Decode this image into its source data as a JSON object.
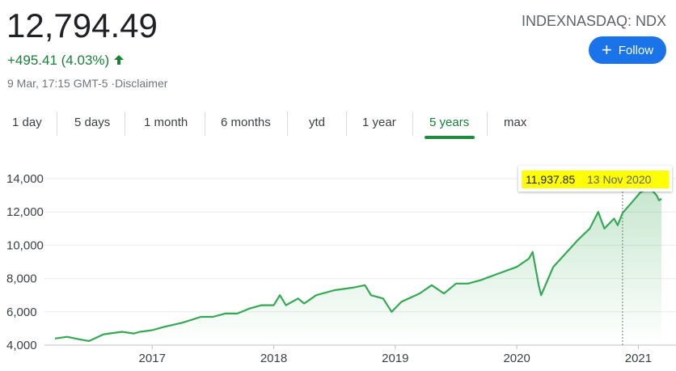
{
  "header": {
    "price": "12,794.49",
    "change": "+495.41 (4.03%)",
    "timestamp": "9 Mar, 17:15 GMT-5 ·",
    "disclaimer": "Disclaimer",
    "ticker": "INDEXNASDAQ: NDX",
    "follow": "Follow"
  },
  "tabs": {
    "items": [
      "1 day",
      "5 days",
      "1 month",
      "6 months",
      "ytd",
      "1 year",
      "5 years",
      "max"
    ],
    "selected": 6
  },
  "chart_data": {
    "type": "line",
    "x": [
      2016.2,
      2016.3,
      2016.4,
      2016.48,
      2016.6,
      2016.75,
      2016.85,
      2016.9,
      2017.0,
      2017.1,
      2017.25,
      2017.4,
      2017.5,
      2017.6,
      2017.7,
      2017.8,
      2017.9,
      2018.0,
      2018.05,
      2018.1,
      2018.2,
      2018.25,
      2018.35,
      2018.5,
      2018.65,
      2018.75,
      2018.8,
      2018.9,
      2018.97,
      2019.05,
      2019.2,
      2019.3,
      2019.4,
      2019.5,
      2019.6,
      2019.7,
      2019.85,
      2020.0,
      2020.1,
      2020.13,
      2020.18,
      2020.2,
      2020.3,
      2020.4,
      2020.5,
      2020.6,
      2020.67,
      2020.72,
      2020.8,
      2020.83,
      2020.87,
      2020.95,
      2021.02,
      2021.1,
      2021.15,
      2021.17,
      2021.19
    ],
    "series": [
      {
        "color": "#34a853",
        "values": [
          4400,
          4500,
          4350,
          4250,
          4650,
          4800,
          4700,
          4800,
          4900,
          5100,
          5350,
          5700,
          5700,
          5900,
          5900,
          6200,
          6400,
          6400,
          7000,
          6400,
          6800,
          6500,
          7000,
          7300,
          7450,
          7600,
          7000,
          6800,
          6000,
          6600,
          7100,
          7600,
          7100,
          7700,
          7700,
          7900,
          8300,
          8700,
          9200,
          9600,
          7600,
          7000,
          8700,
          9500,
          10300,
          11000,
          12000,
          11000,
          11600,
          11200,
          11937.85,
          12600,
          13200,
          13400,
          13000,
          12700,
          12794.49
        ]
      }
    ],
    "xlim": [
      2016.2,
      2021.19
    ],
    "xticks": [
      2017,
      2018,
      2019,
      2020,
      2021
    ],
    "ylim": [
      4000,
      14000
    ],
    "yticks": [
      {
        "value": 4000,
        "label": "4,000"
      },
      {
        "value": 6000,
        "label": "6,000"
      },
      {
        "value": 8000,
        "label": "8,000"
      },
      {
        "value": 10000,
        "label": "10,000"
      },
      {
        "value": 12000,
        "label": "12,000"
      },
      {
        "value": 14000,
        "label": "14,000"
      }
    ],
    "grid": true,
    "tooltip": {
      "x": 2020.87,
      "value": 11937.85,
      "label": "11,937.85",
      "date": "13 Nov 2020"
    }
  }
}
